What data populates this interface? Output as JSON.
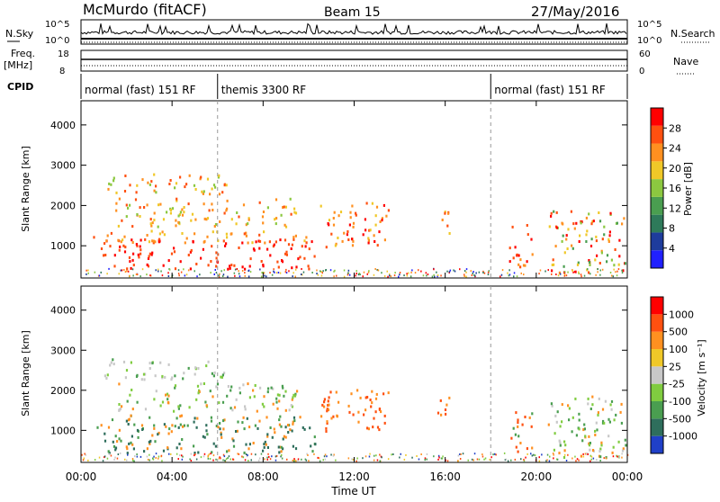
{
  "header": {
    "station": "McMurdo (fitACF)",
    "beam": "Beam 15",
    "date": "27/May/2016"
  },
  "top_panels": {
    "nsky_label": "N.Sky",
    "nsearch_label": "N.Search",
    "freq_label": "Freq.",
    "freq_unit": "[MHz]",
    "nave_label": "Nave",
    "cpid_label": "CPID",
    "nsky_ticks": [
      "10^5",
      "10^0"
    ],
    "nsearch_ticks": [
      "10^5",
      "10^0"
    ],
    "freq_ticks": [
      "18",
      "8"
    ],
    "nave_ticks": [
      "60",
      "0"
    ]
  },
  "cpid_segments": [
    {
      "label": "normal (fast) 151 RF",
      "start_hour": 0,
      "end_hour": 6
    },
    {
      "label": "themis 3300 RF",
      "start_hour": 6,
      "end_hour": 18
    },
    {
      "label": "normal (fast) 151 RF",
      "start_hour": 18,
      "end_hour": 24
    }
  ],
  "chart_data": [
    {
      "type": "heatmap",
      "name": "power",
      "ylabel": "Slant Range [km]",
      "xlabel": "Time UT",
      "x_ticks": [
        "00:00",
        "04:00",
        "08:00",
        "12:00",
        "16:00",
        "20:00",
        "00:00"
      ],
      "y_ticks": [
        1000,
        2000,
        3000,
        4000
      ],
      "ylim": [
        200,
        4600
      ],
      "xlim_hours": [
        0,
        24
      ],
      "colorbar": {
        "label": "Power [dB]",
        "ticks": [
          "28",
          "24",
          "20",
          "16",
          "12",
          "8",
          "4"
        ],
        "colors": [
          "#2020ff",
          "#1e3c9c",
          "#2e7a5a",
          "#4a9e50",
          "#8cc840",
          "#f0c828",
          "#ff9020",
          "#ff5010",
          "#ff0000"
        ]
      }
    },
    {
      "type": "heatmap",
      "name": "velocity",
      "ylabel": "Slant Range [km]",
      "xlabel": "Time UT",
      "x_ticks": [
        "00:00",
        "04:00",
        "08:00",
        "12:00",
        "16:00",
        "20:00",
        "00:00"
      ],
      "y_ticks": [
        1000,
        2000,
        3000,
        4000
      ],
      "ylim": [
        200,
        4600
      ],
      "xlim_hours": [
        0,
        24
      ],
      "colorbar": {
        "label": "Velocity [m s⁻¹]",
        "ticks": [
          "1000",
          "500",
          "100",
          "25",
          "-25",
          "-100",
          "-500",
          "-1000"
        ],
        "colors": [
          "#2040c8",
          "#2e6e5c",
          "#4a9e50",
          "#80cc40",
          "#c8c8c8",
          "#f0c828",
          "#ff9020",
          "#ff5010",
          "#ff0000"
        ]
      }
    }
  ]
}
